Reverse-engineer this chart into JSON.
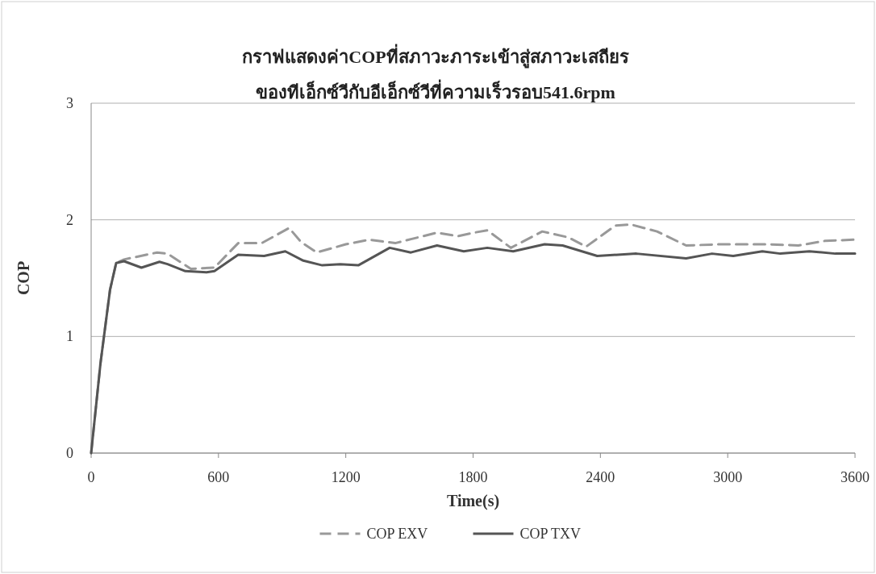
{
  "chart_data": {
    "type": "line",
    "title": "กราฟแสดงค่าCOPที่สภาวะภาระเข้าสู่สภาวะเสถียร",
    "subtitle": "ของทีเอ็กซ์วีกับอีเอ็กซ์วีที่ความเร็วรอบ541.6rpm",
    "xlabel": "Time(s)",
    "ylabel": "COP",
    "xlim": [
      0,
      3600
    ],
    "xticks": [
      0,
      600,
      1200,
      1800,
      2400,
      3000,
      3600
    ],
    "ylim": [
      0,
      3
    ],
    "yticks": [
      0,
      1,
      2,
      3
    ],
    "grid": "y",
    "legend": "bottom",
    "series": [
      {
        "name": "COP EXV",
        "color": "#999999",
        "line_style": "dashed",
        "x": [
          0,
          44,
          89,
          118,
          155,
          311,
          360,
          470,
          581,
          693,
          804,
          933,
          989,
          1063,
          1200,
          1311,
          1433,
          1630,
          1730,
          1804,
          1867,
          1978,
          2126,
          2248,
          2333,
          2470,
          2544,
          2667,
          2804,
          2963,
          3185,
          3333,
          3459,
          3600
        ],
        "values": [
          0,
          0.77,
          1.4,
          1.63,
          1.66,
          1.72,
          1.71,
          1.58,
          1.59,
          1.8,
          1.8,
          1.93,
          1.81,
          1.72,
          1.79,
          1.83,
          1.8,
          1.89,
          1.86,
          1.89,
          1.91,
          1.76,
          1.9,
          1.85,
          1.77,
          1.95,
          1.96,
          1.9,
          1.78,
          1.79,
          1.79,
          1.78,
          1.82,
          1.83
        ]
      },
      {
        "name": "COP TXV",
        "color": "#555555",
        "line_style": "solid",
        "x": [
          0,
          44,
          89,
          118,
          155,
          237,
          322,
          360,
          444,
          544,
          581,
          693,
          815,
          915,
          1000,
          1089,
          1174,
          1259,
          1407,
          1507,
          1630,
          1756,
          1867,
          1989,
          2137,
          2222,
          2385,
          2570,
          2804,
          2926,
          3026,
          3163,
          3248,
          3385,
          3507,
          3600
        ],
        "values": [
          0,
          0.77,
          1.4,
          1.63,
          1.645,
          1.59,
          1.64,
          1.62,
          1.56,
          1.55,
          1.56,
          1.7,
          1.69,
          1.73,
          1.65,
          1.61,
          1.62,
          1.61,
          1.76,
          1.72,
          1.78,
          1.73,
          1.76,
          1.73,
          1.79,
          1.78,
          1.69,
          1.71,
          1.67,
          1.71,
          1.69,
          1.73,
          1.71,
          1.73,
          1.71,
          1.71
        ]
      }
    ]
  }
}
